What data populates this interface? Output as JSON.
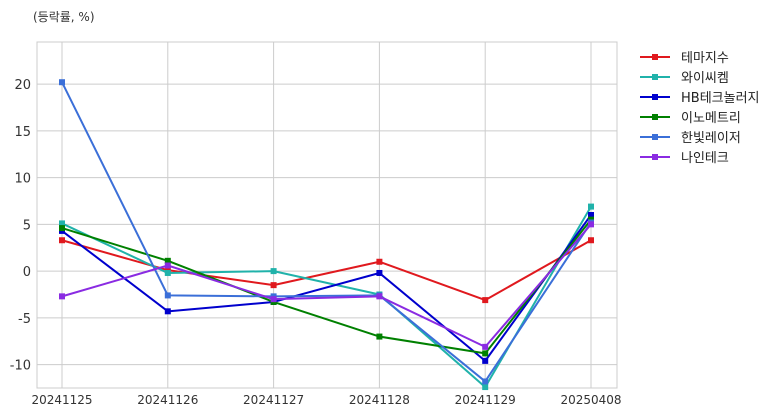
{
  "chart_data": {
    "type": "line",
    "unit_label": "(등락률, %)",
    "title": "",
    "xlabel": "",
    "ylabel": "",
    "categories": [
      "20241125",
      "20241126",
      "20241127",
      "20241128",
      "20241129",
      "20250408"
    ],
    "ylim": [
      -12.5,
      24.5
    ],
    "yticks": [
      -10,
      -5,
      0,
      5,
      10,
      15,
      20
    ],
    "grid": true,
    "legend_position": "right",
    "series": [
      {
        "name": "테마지수",
        "color": "#e0191e",
        "values": [
          3.3,
          0.1,
          -1.5,
          1.0,
          -3.1,
          3.3
        ]
      },
      {
        "name": "와이씨켐",
        "color": "#20b2aa",
        "values": [
          5.1,
          -0.2,
          0.0,
          -2.5,
          -12.4,
          6.9
        ]
      },
      {
        "name": "HB테크놀러지",
        "color": "#0000cd",
        "values": [
          4.3,
          -4.3,
          -3.3,
          -0.2,
          -9.6,
          6.0
        ]
      },
      {
        "name": "이노메트리",
        "color": "#008000",
        "values": [
          4.6,
          1.1,
          -3.3,
          -7.0,
          -8.8,
          5.5
        ]
      },
      {
        "name": "한빛레이저",
        "color": "#3b6fd8",
        "values": [
          20.2,
          -2.6,
          -2.7,
          -2.6,
          -11.8,
          5.2
        ]
      },
      {
        "name": "나인테크",
        "color": "#8a2be2",
        "values": [
          -2.7,
          0.6,
          -3.0,
          -2.7,
          -8.1,
          5.0
        ]
      }
    ]
  }
}
